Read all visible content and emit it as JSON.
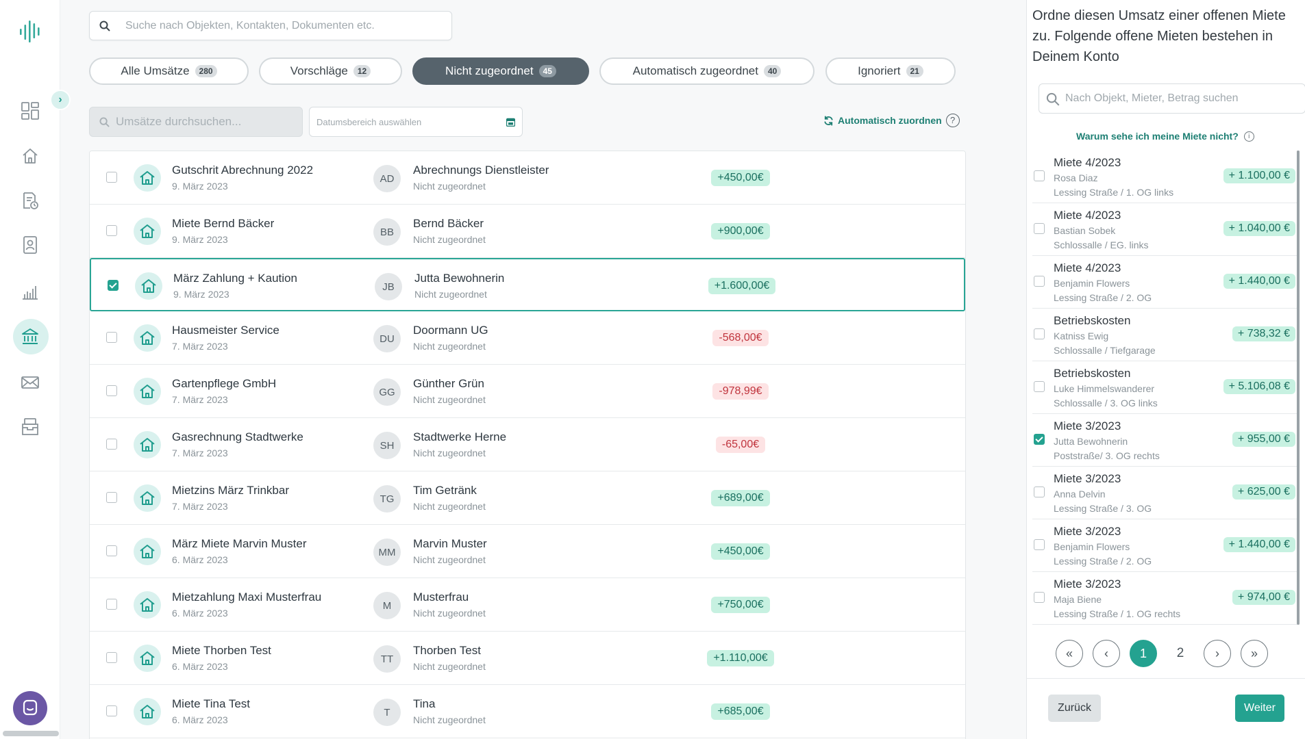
{
  "search": {
    "placeholder": "Suche nach Objekten, Kontakten, Dokumenten etc."
  },
  "tabs": [
    {
      "label": "Alle Umsätze",
      "count": "280"
    },
    {
      "label": "Vorschläge",
      "count": "12"
    },
    {
      "label": "Nicht zugeordnet",
      "count": "45",
      "active": true
    },
    {
      "label": "Automatisch zugeordnet",
      "count": "40"
    },
    {
      "label": "Ignoriert",
      "count": "21"
    }
  ],
  "filters": {
    "search_placeholder": "Umsätze durchsuchen...",
    "date_placeholder": "Datumsbereich auswählen",
    "auto_assign_label": "Automatisch zuordnen",
    "help_symbol": "?"
  },
  "transactions": [
    {
      "title": "Gutschrit Abrechnung 2022",
      "date": "9. März 2023",
      "initials": "AD",
      "name": "Abrechnungs Dienstleister",
      "status": "Nicht zugeordnet",
      "amount": "+450,00€",
      "sign": "pos",
      "checked": false
    },
    {
      "title": "Miete Bernd Bäcker",
      "date": "9. März 2023",
      "initials": "BB",
      "name": "Bernd Bäcker",
      "status": "Nicht zugeordnet",
      "amount": "+900,00€",
      "sign": "pos",
      "checked": false
    },
    {
      "title": "März Zahlung + Kaution",
      "date": "9. März 2023",
      "initials": "JB",
      "name": "Jutta Bewohnerin",
      "status": "Nicht zugeordnet",
      "amount": "+1.600,00€",
      "sign": "pos",
      "checked": true
    },
    {
      "title": "Hausmeister Service",
      "date": "7. März 2023",
      "initials": "DU",
      "name": "Doormann UG",
      "status": "Nicht zugeordnet",
      "amount": "-568,00€",
      "sign": "neg",
      "checked": false
    },
    {
      "title": "Gartenpflege GmbH",
      "date": "7. März 2023",
      "initials": "GG",
      "name": "Günther Grün",
      "status": "Nicht zugeordnet",
      "amount": "-978,99€",
      "sign": "neg",
      "checked": false
    },
    {
      "title": "Gasrechnung Stadtwerke",
      "date": "7. März 2023",
      "initials": "SH",
      "name": "Stadtwerke Herne",
      "status": "Nicht zugeordnet",
      "amount": "-65,00€",
      "sign": "neg",
      "checked": false
    },
    {
      "title": "Mietzins März Trinkbar",
      "date": "7. März 2023",
      "initials": "TG",
      "name": "Tim Getränk",
      "status": "Nicht zugeordnet",
      "amount": "+689,00€",
      "sign": "pos",
      "checked": false
    },
    {
      "title": "März Miete Marvin Muster",
      "date": "6. März 2023",
      "initials": "MM",
      "name": "Marvin Muster",
      "status": "Nicht zugeordnet",
      "amount": "+450,00€",
      "sign": "pos",
      "checked": false
    },
    {
      "title": "Mietzahlung Maxi Musterfrau",
      "date": "6. März 2023",
      "initials": "M",
      "name": "Musterfrau",
      "status": "Nicht zugeordnet",
      "amount": "+750,00€",
      "sign": "pos",
      "checked": false
    },
    {
      "title": "Miete Thorben Test",
      "date": "6. März 2023",
      "initials": "TT",
      "name": "Thorben Test",
      "status": "Nicht zugeordnet",
      "amount": "+1.110,00€",
      "sign": "pos",
      "checked": false
    },
    {
      "title": "Miete Tina Test",
      "date": "6. März 2023",
      "initials": "T",
      "name": "Tina",
      "status": "Nicht zugeordnet",
      "amount": "+685,00€",
      "sign": "pos",
      "checked": false
    }
  ],
  "panel": {
    "title": "Ordne diesen Umsatz einer offenen Miete zu. Folgende offene Mieten bestehen in Deinem Konto",
    "search_placeholder": "Nach Objekt, Mieter, Betrag suchen",
    "why_label": "Warum sehe ich meine Miete nicht?",
    "info_symbol": "i",
    "rents": [
      {
        "title": "Miete 4/2023",
        "name": "Rosa Diaz",
        "address": "Lessing Straße / 1. OG links",
        "amount": "+ 1.100,00 €",
        "checked": false
      },
      {
        "title": "Miete 4/2023",
        "name": "Bastian Sobek",
        "address": "Schlossalle / EG. links",
        "amount": "+ 1.040,00 €",
        "checked": false
      },
      {
        "title": "Miete 4/2023",
        "name": "Benjamin Flowers",
        "address": "Lessing Straße / 2. OG",
        "amount": "+ 1.440,00 €",
        "checked": false
      },
      {
        "title": "Betriebskosten",
        "name": "Katniss Ewig",
        "address": "Schlossalle / Tiefgarage",
        "amount": "+ 738,32 €",
        "checked": false
      },
      {
        "title": "Betriebskosten",
        "name": "Luke Himmelswanderer",
        "address": "Schlossalle / 3. OG links",
        "amount": "+ 5.106,08 €",
        "checked": false
      },
      {
        "title": "Miete 3/2023",
        "name": "Jutta Bewohnerin",
        "address": "Poststraße/ 3. OG rechts",
        "amount": "+ 955,00 €",
        "checked": true
      },
      {
        "title": "Miete 3/2023",
        "name": "Anna Delvin",
        "address": "Lessing Straße / 3. OG",
        "amount": "+ 625,00 €",
        "checked": false
      },
      {
        "title": "Miete 3/2023",
        "name": "Benjamin Flowers",
        "address": "Lessing Straße / 2. OG",
        "amount": "+ 1.440,00 €",
        "checked": false
      },
      {
        "title": "Miete 3/2023",
        "name": "Maja Biene",
        "address": "Lessing Straße / 1. OG rechts",
        "amount": "+ 974,00 €",
        "checked": false
      }
    ],
    "pagination": {
      "first": "«",
      "prev": "‹",
      "pages": [
        "1",
        "2"
      ],
      "current": "1",
      "next": "›",
      "last": "»"
    },
    "back_label": "Zurück",
    "next_label": "Weiter"
  },
  "colors": {
    "accent": "#24a290",
    "accent_light": "#d9f1ee",
    "positive_bg": "#c7f1e1",
    "negative_bg": "#fde3e4",
    "negative_text": "#c0343d",
    "active_tab": "#56636c"
  },
  "icons": [
    "logo-icon",
    "dashboard-icon",
    "home-icon",
    "document-icon",
    "contacts-icon",
    "chart-icon",
    "bank-icon",
    "mail-icon",
    "archive-icon",
    "chat-icon",
    "search-icon",
    "calendar-icon",
    "refresh-icon"
  ]
}
